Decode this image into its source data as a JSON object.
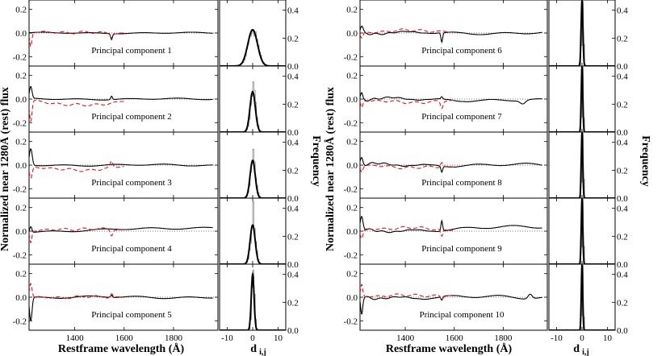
{
  "figure": {
    "left_ylabel": "Normalized near 1280Å (rest) flux",
    "right_ylabel": "Normalized near 1280Å (rest) flux",
    "freq_label_left": "Frequency",
    "freq_label_right": "Frequency",
    "xlabel_spectrum_left": "Restframe wavelength (Å)",
    "xlabel_spectrum_right": "Restframe wavelength (Å)",
    "xlabel_dist_left": "d",
    "xlabel_dist_sub_left": "i,j",
    "xlabel_dist_right": "d",
    "xlabel_dist_sub_right": "i,j"
  },
  "chart_data": {
    "type": "line",
    "description_axes": {
      "spectrum_xlim": [
        1215,
        1980
      ],
      "spectrum_ylim": [
        -0.28,
        0.28
      ],
      "spectrum_xticks": [
        "1400",
        "1600",
        "1800"
      ],
      "spectrum_xtick_values": [
        1400,
        1600,
        1800
      ],
      "spectrum_yticks": [
        "-0.2",
        "0.0",
        "0.2"
      ],
      "spectrum_ytick_values": [
        -0.2,
        0.0,
        0.2
      ],
      "dist_xlim": [
        -13,
        13
      ],
      "dist_ylim": [
        0,
        0.45
      ],
      "dist_xticks": [
        "-10",
        "0",
        "10"
      ],
      "dist_xtick_values": [
        -10,
        0,
        10
      ],
      "dist_yticks": [
        "0.0",
        "0.2",
        "0.4"
      ],
      "dist_ytick_values": [
        0.0,
        0.2,
        0.4
      ]
    },
    "components": [
      {
        "label": "Principal component 1",
        "gauss_peak": 0.26,
        "gauss_sigma": 1.9,
        "hist_peak": 0.25
      },
      {
        "label": "Principal component 2",
        "gauss_peak": 0.29,
        "gauss_sigma": 1.05,
        "hist_peak": 0.36
      },
      {
        "label": "Principal component 3",
        "gauss_peak": 0.27,
        "gauss_sigma": 1.0,
        "hist_peak": 0.35
      },
      {
        "label": "Principal component 4",
        "gauss_peak": 0.28,
        "gauss_sigma": 1.0,
        "hist_peak": 0.45
      },
      {
        "label": "Principal component 5",
        "gauss_peak": 0.4,
        "gauss_sigma": 0.55,
        "hist_peak": 0.43
      },
      {
        "label": "Principal component 6",
        "gauss_peak": 0.47,
        "gauss_sigma": 0.35,
        "hist_peak": 0.47
      },
      {
        "label": "Principal component 7",
        "gauss_peak": 0.47,
        "gauss_sigma": 0.3,
        "hist_peak": 0.47
      },
      {
        "label": "Principal component 8",
        "gauss_peak": 0.47,
        "gauss_sigma": 0.3,
        "hist_peak": 0.47
      },
      {
        "label": "Principal component 9",
        "gauss_peak": 0.47,
        "gauss_sigma": 0.3,
        "hist_peak": 0.47
      },
      {
        "label": "Principal component 10",
        "gauss_peak": 0.47,
        "gauss_sigma": 0.28,
        "hist_peak": 0.47
      }
    ],
    "colors": {
      "black_line": "#000000",
      "red_dash": "#e8141c",
      "dotted": "#555555",
      "hist": "#888888"
    }
  }
}
